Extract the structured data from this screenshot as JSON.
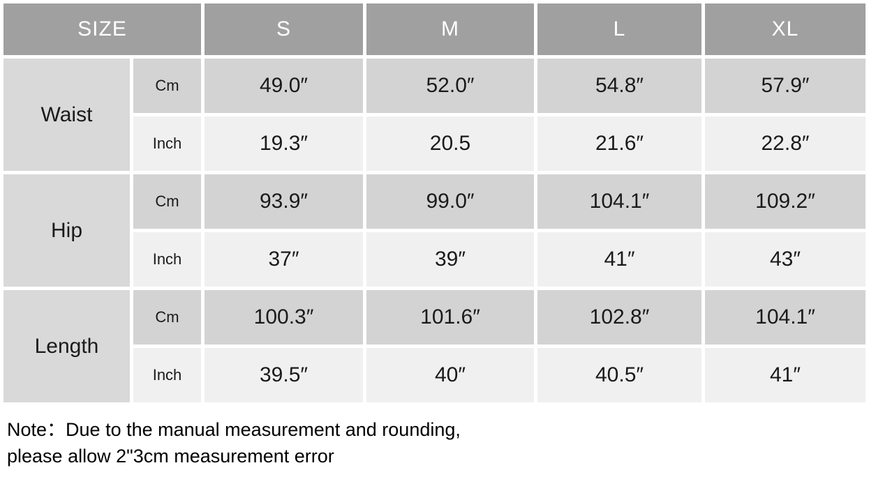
{
  "size_chart": {
    "corner_label": "SIZE",
    "columns": [
      "S",
      "M",
      "L",
      "XL"
    ],
    "rows": [
      {
        "label": "Waist",
        "units": [
          {
            "unit": "Cm",
            "values": [
              "49.0″",
              "52.0″",
              "54.8″",
              "57.9″"
            ]
          },
          {
            "unit": "Inch",
            "values": [
              "19.3″",
              "20.5",
              "21.6″",
              "22.8″"
            ]
          }
        ]
      },
      {
        "label": "Hip",
        "units": [
          {
            "unit": "Cm",
            "values": [
              "93.9″",
              "99.0″",
              "104.1″",
              "109.2″"
            ]
          },
          {
            "unit": "Inch",
            "values": [
              "37″",
              "39″",
              "41″",
              "43″"
            ]
          }
        ]
      },
      {
        "label": "Length",
        "units": [
          {
            "unit": "Cm",
            "values": [
              "100.3″",
              "101.6″",
              "102.8″",
              "104.1″"
            ]
          },
          {
            "unit": "Inch",
            "values": [
              "39.5″",
              "40″",
              "40.5″",
              "41″"
            ]
          }
        ]
      }
    ]
  },
  "note": {
    "line1": "Note：Due to the manual measurement and rounding,",
    "line2": "please allow 2\"3cm measurement error"
  },
  "colors": {
    "header_bg": "#a0a0a0",
    "header_text": "#ffffff",
    "label_cell_bg": "#d9d9d9",
    "cm_row_bg": "#d3d3d3",
    "inch_row_bg": "#f0f0f0",
    "gap_color": "#ffffff",
    "body_text": "#1a1a1a"
  }
}
